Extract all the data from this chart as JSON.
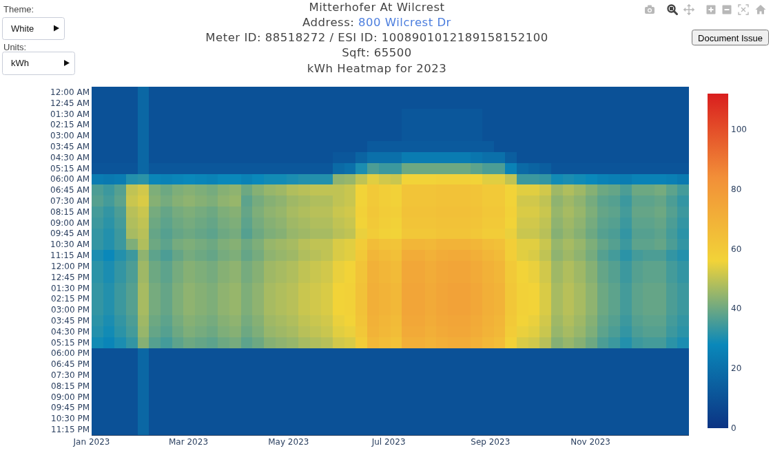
{
  "chart_data": {
    "type": "heatmap",
    "title": "Mitterhofer At Wilcrest",
    "subtitle": "Address: 800 Wilcrest Dr\nMeter ID: 88518272 / ESI ID: 1008901012189158152100\nSqft: 65500\nkWh Heatmap for 2023",
    "annotations": [
      "Theme:",
      "White",
      "Units:",
      "kWh",
      "Document Issue"
    ],
    "x": [
      "2023-01-04T12:00",
      "2023-01-11T12:00",
      "2023-01-18T12:00",
      "2023-01-25T12:00",
      "2023-02-01T12:00",
      "2023-02-08T12:00",
      "2023-02-15T12:00",
      "2023-02-22T12:00",
      "2023-03-01T12:00",
      "2023-03-08T12:00",
      "2023-03-15T12:00",
      "2023-03-22T12:00",
      "2023-03-29T12:00",
      "2023-04-05T12:00",
      "2023-04-12T12:00",
      "2023-04-19T12:00",
      "2023-04-26T12:00",
      "2023-05-03T12:00",
      "2023-05-10T12:00",
      "2023-05-17T12:00",
      "2023-05-24T12:00",
      "2023-05-31T12:00",
      "2023-06-07T12:00",
      "2023-06-14T12:00",
      "2023-06-21T12:00",
      "2023-06-28T12:00",
      "2023-07-05T12:00",
      "2023-07-12T12:00",
      "2023-07-19T12:00",
      "2023-07-26T12:00",
      "2023-08-02T12:00",
      "2023-08-09T12:00",
      "2023-08-16T12:00",
      "2023-08-23T12:00",
      "2023-08-30T12:00",
      "2023-09-06T12:00",
      "2023-09-13T12:00",
      "2023-09-20T12:00",
      "2023-09-27T12:00",
      "2023-10-04T12:00",
      "2023-10-11T12:00",
      "2023-10-18T12:00",
      "2023-10-25T12:00",
      "2023-11-01T12:00",
      "2023-11-08T12:00",
      "2023-11-15T12:00",
      "2023-11-22T12:00",
      "2023-11-29T12:00",
      "2023-12-06T12:00",
      "2023-12-13T12:00",
      "2023-12-20T12:00",
      "2023-12-27T12:00"
    ],
    "xlim": [
      "2023-01-01",
      "2023-12-31"
    ],
    "xticks": [
      {
        "value": "2023-01-01",
        "label": "Jan 2023"
      },
      {
        "value": "2023-03-01",
        "label": "Mar 2023"
      },
      {
        "value": "2023-05-01",
        "label": "May 2023"
      },
      {
        "value": "2023-07-01",
        "label": "Jul 2023"
      },
      {
        "value": "2023-09-01",
        "label": "Sep 2023"
      },
      {
        "value": "2023-11-01",
        "label": "Nov 2023"
      }
    ],
    "y_categories": [
      "12:00 AM",
      "12:45 AM",
      "01:30 AM",
      "02:15 AM",
      "03:00 AM",
      "03:45 AM",
      "04:30 AM",
      "05:15 AM",
      "06:00 AM",
      "06:45 AM",
      "07:30 AM",
      "08:15 AM",
      "09:00 AM",
      "09:45 AM",
      "10:30 AM",
      "11:15 AM",
      "12:00 PM",
      "12:45 PM",
      "01:30 PM",
      "02:15 PM",
      "03:00 PM",
      "03:45 PM",
      "04:30 PM",
      "05:15 PM",
      "06:00 PM",
      "06:45 PM",
      "07:30 PM",
      "08:15 PM",
      "09:00 PM",
      "09:45 PM",
      "10:30 PM",
      "11:15 PM"
    ],
    "clim": [
      0,
      112
    ],
    "cticks": [
      0,
      20,
      40,
      60,
      80,
      100
    ],
    "cells": [
      [
        10,
        10,
        10,
        10,
        17,
        10,
        10,
        10,
        10,
        10,
        10,
        10,
        10,
        10,
        10,
        10,
        10,
        10,
        10,
        10,
        10,
        10,
        10,
        10,
        10,
        10,
        10,
        10,
        10,
        10,
        10,
        10,
        10,
        10,
        10,
        10,
        10,
        10,
        10,
        10,
        10,
        10,
        10,
        10,
        10,
        10,
        10,
        10,
        10,
        10,
        10,
        10
      ],
      [
        10,
        10,
        10,
        10,
        17,
        10,
        10,
        10,
        10,
        10,
        10,
        10,
        10,
        10,
        10,
        10,
        10,
        10,
        10,
        10,
        10,
        10,
        10,
        10,
        10,
        10,
        10,
        10,
        10,
        10,
        10,
        10,
        10,
        10,
        10,
        10,
        10,
        10,
        10,
        10,
        10,
        10,
        10,
        10,
        10,
        10,
        10,
        10,
        10,
        10,
        10,
        10
      ],
      [
        10,
        10,
        10,
        10,
        17,
        10,
        10,
        10,
        10,
        10,
        10,
        10,
        10,
        10,
        10,
        10,
        10,
        10,
        10,
        10,
        10,
        10,
        10,
        10,
        10,
        10,
        10,
        12,
        12,
        12,
        12,
        12,
        12,
        12,
        10,
        10,
        10,
        10,
        10,
        10,
        10,
        10,
        10,
        10,
        10,
        10,
        10,
        10,
        10,
        10,
        10,
        10
      ],
      [
        10,
        10,
        10,
        10,
        17,
        10,
        10,
        10,
        10,
        10,
        10,
        10,
        10,
        10,
        10,
        10,
        10,
        10,
        10,
        10,
        10,
        10,
        10,
        10,
        10,
        10,
        10,
        12,
        12,
        12,
        12,
        12,
        12,
        12,
        10,
        10,
        10,
        10,
        10,
        10,
        10,
        10,
        10,
        10,
        10,
        10,
        10,
        10,
        10,
        10,
        10,
        10
      ],
      [
        10,
        10,
        10,
        10,
        17,
        10,
        10,
        10,
        10,
        10,
        10,
        10,
        10,
        10,
        10,
        10,
        10,
        10,
        10,
        10,
        10,
        10,
        10,
        10,
        10,
        10,
        10,
        12,
        12,
        12,
        12,
        12,
        12,
        12,
        10,
        10,
        10,
        10,
        10,
        10,
        10,
        10,
        10,
        10,
        10,
        10,
        10,
        10,
        10,
        10,
        10,
        10
      ],
      [
        10,
        10,
        10,
        10,
        17,
        10,
        10,
        10,
        10,
        10,
        10,
        10,
        10,
        10,
        10,
        10,
        10,
        10,
        10,
        10,
        10,
        10,
        10,
        10,
        13,
        13,
        13,
        13,
        13,
        13,
        13,
        13,
        13,
        13,
        13,
        10,
        10,
        10,
        10,
        10,
        10,
        10,
        10,
        10,
        10,
        10,
        10,
        10,
        10,
        10,
        10,
        10
      ],
      [
        10,
        10,
        10,
        10,
        17,
        10,
        10,
        10,
        10,
        10,
        10,
        10,
        10,
        10,
        10,
        10,
        10,
        10,
        10,
        10,
        10,
        12,
        12,
        16,
        20,
        20,
        20,
        24,
        24,
        24,
        24,
        24,
        24,
        22,
        20,
        20,
        14,
        10,
        10,
        10,
        10,
        10,
        10,
        10,
        10,
        10,
        10,
        10,
        10,
        10,
        10,
        10
      ],
      [
        11,
        11,
        11,
        11,
        17,
        12,
        12,
        12,
        12,
        12,
        12,
        12,
        12,
        12,
        12,
        12,
        12,
        12,
        12,
        12,
        12,
        18,
        20,
        30,
        36,
        34,
        34,
        40,
        40,
        40,
        40,
        40,
        40,
        38,
        36,
        36,
        26,
        18,
        16,
        14,
        11,
        11,
        11,
        11,
        11,
        11,
        11,
        11,
        11,
        11,
        11,
        11
      ],
      [
        24,
        23,
        24,
        31,
        32,
        27,
        26,
        27,
        28,
        27,
        26,
        28,
        28,
        26,
        28,
        29,
        29,
        30,
        31,
        31,
        31,
        44,
        45,
        50,
        54,
        52,
        51,
        56,
        56,
        56,
        57,
        57,
        57,
        56,
        54,
        54,
        50,
        34,
        34,
        33,
        29,
        30,
        29,
        28,
        26,
        25,
        24,
        26,
        26,
        26,
        25,
        23
      ],
      [
        36,
        34,
        37,
        50,
        52,
        42,
        40,
        42,
        43,
        42,
        41,
        43,
        44,
        40,
        43,
        45,
        46,
        48,
        49,
        50,
        50,
        50,
        51,
        56,
        60,
        58,
        57,
        62,
        62,
        62,
        63,
        63,
        63,
        62,
        60,
        60,
        56,
        54,
        54,
        52,
        46,
        48,
        46,
        43,
        40,
        39,
        36,
        40,
        40,
        41,
        38,
        35
      ],
      [
        37,
        35,
        38,
        51,
        53,
        43,
        41,
        43,
        44,
        43,
        42,
        44,
        45,
        38,
        41,
        43,
        44,
        46,
        47,
        48,
        48,
        50,
        51,
        56,
        60,
        58,
        57,
        62,
        62,
        62,
        63,
        63,
        63,
        62,
        60,
        60,
        56,
        52,
        52,
        50,
        44,
        46,
        44,
        41,
        38,
        37,
        34,
        38,
        38,
        39,
        36,
        33
      ],
      [
        35,
        33,
        36,
        49,
        51,
        41,
        39,
        41,
        42,
        41,
        40,
        42,
        43,
        39,
        42,
        44,
        45,
        47,
        48,
        49,
        49,
        51,
        52,
        57,
        61,
        59,
        58,
        63,
        63,
        63,
        64,
        64,
        64,
        63,
        61,
        61,
        57,
        53,
        53,
        51,
        45,
        47,
        45,
        42,
        39,
        38,
        35,
        39,
        39,
        40,
        37,
        34
      ],
      [
        34,
        32,
        35,
        48,
        50,
        40,
        38,
        40,
        41,
        40,
        39,
        41,
        42,
        38,
        41,
        43,
        44,
        46,
        47,
        48,
        48,
        50,
        51,
        56,
        60,
        58,
        57,
        62,
        62,
        62,
        63,
        63,
        63,
        62,
        60,
        60,
        56,
        52,
        52,
        50,
        44,
        46,
        44,
        41,
        38,
        37,
        34,
        38,
        38,
        39,
        36,
        33
      ],
      [
        33,
        31,
        34,
        47,
        49,
        39,
        37,
        39,
        40,
        39,
        38,
        40,
        41,
        37,
        40,
        42,
        43,
        45,
        46,
        47,
        47,
        49,
        50,
        55,
        59,
        57,
        56,
        61,
        61,
        61,
        62,
        62,
        62,
        61,
        59,
        59,
        55,
        51,
        51,
        49,
        43,
        45,
        43,
        40,
        37,
        36,
        33,
        37,
        37,
        38,
        35,
        32
      ],
      [
        33,
        31,
        34,
        42,
        48,
        40,
        38,
        41,
        42,
        41,
        40,
        42,
        43,
        40,
        42,
        45,
        46,
        47,
        49,
        50,
        50,
        53,
        54,
        59,
        65,
        63,
        62,
        68,
        68,
        67,
        69,
        69,
        69,
        68,
        65,
        64,
        58,
        54,
        54,
        51,
        45,
        47,
        45,
        42,
        39,
        37,
        34,
        38,
        38,
        39,
        36,
        33
      ],
      [
        30,
        28,
        31,
        34,
        44,
        38,
        36,
        39,
        41,
        40,
        39,
        41,
        42,
        39,
        41,
        44,
        45,
        46,
        48,
        49,
        50,
        53,
        54,
        60,
        68,
        66,
        64,
        72,
        72,
        70,
        72,
        73,
        73,
        71,
        68,
        66,
        58,
        54,
        53,
        50,
        44,
        46,
        44,
        41,
        37,
        35,
        32,
        35,
        36,
        36,
        33,
        31
      ],
      [
        32,
        30,
        33,
        36,
        46,
        40,
        38,
        41,
        43,
        42,
        41,
        43,
        44,
        41,
        43,
        46,
        47,
        48,
        50,
        51,
        52,
        55,
        56,
        62,
        70,
        68,
        66,
        74,
        74,
        72,
        74,
        75,
        75,
        73,
        70,
        68,
        60,
        56,
        55,
        52,
        46,
        48,
        46,
        43,
        39,
        37,
        34,
        37,
        38,
        38,
        35,
        33
      ],
      [
        32,
        30,
        33,
        36,
        46,
        40,
        38,
        41,
        43,
        42,
        41,
        43,
        44,
        41,
        43,
        46,
        47,
        48,
        50,
        51,
        52,
        55,
        56,
        62,
        70,
        68,
        66,
        74,
        74,
        72,
        74,
        75,
        75,
        73,
        70,
        68,
        60,
        56,
        55,
        52,
        46,
        48,
        46,
        43,
        39,
        37,
        34,
        37,
        38,
        38,
        35,
        33
      ],
      [
        33,
        31,
        34,
        37,
        47,
        41,
        39,
        42,
        44,
        43,
        42,
        44,
        45,
        42,
        44,
        47,
        48,
        49,
        51,
        52,
        53,
        56,
        57,
        63,
        71,
        69,
        67,
        75,
        75,
        73,
        75,
        76,
        76,
        74,
        71,
        69,
        61,
        57,
        56,
        53,
        47,
        49,
        47,
        44,
        40,
        38,
        35,
        38,
        39,
        39,
        36,
        34
      ],
      [
        33,
        31,
        34,
        37,
        47,
        41,
        39,
        42,
        44,
        43,
        42,
        44,
        45,
        42,
        44,
        47,
        48,
        49,
        51,
        52,
        53,
        56,
        57,
        63,
        71,
        69,
        67,
        75,
        75,
        73,
        75,
        76,
        76,
        74,
        71,
        69,
        61,
        57,
        56,
        53,
        47,
        49,
        47,
        44,
        40,
        38,
        35,
        38,
        39,
        39,
        36,
        34
      ],
      [
        33,
        31,
        34,
        37,
        47,
        41,
        39,
        42,
        44,
        43,
        42,
        44,
        45,
        42,
        44,
        47,
        48,
        49,
        51,
        52,
        53,
        56,
        57,
        63,
        71,
        69,
        67,
        75,
        75,
        73,
        75,
        76,
        76,
        74,
        71,
        69,
        61,
        57,
        56,
        53,
        47,
        49,
        47,
        44,
        40,
        38,
        35,
        38,
        39,
        39,
        36,
        34
      ],
      [
        32,
        30,
        33,
        36,
        46,
        40,
        38,
        41,
        43,
        42,
        41,
        43,
        44,
        41,
        43,
        46,
        47,
        48,
        50,
        51,
        52,
        55,
        56,
        62,
        70,
        68,
        66,
        74,
        74,
        72,
        74,
        75,
        75,
        73,
        70,
        68,
        60,
        56,
        55,
        52,
        46,
        48,
        46,
        43,
        39,
        37,
        34,
        37,
        38,
        38,
        35,
        33
      ],
      [
        31,
        29,
        32,
        35,
        45,
        39,
        37,
        40,
        42,
        41,
        40,
        42,
        43,
        40,
        42,
        45,
        46,
        47,
        49,
        50,
        51,
        54,
        55,
        61,
        69,
        67,
        65,
        73,
        73,
        71,
        73,
        74,
        74,
        72,
        69,
        67,
        59,
        55,
        54,
        51,
        45,
        47,
        45,
        42,
        38,
        36,
        33,
        36,
        37,
        37,
        34,
        32
      ],
      [
        29,
        27,
        30,
        33,
        43,
        37,
        35,
        38,
        40,
        39,
        38,
        40,
        41,
        38,
        40,
        43,
        44,
        45,
        47,
        48,
        49,
        52,
        53,
        59,
        67,
        65,
        63,
        71,
        71,
        69,
        71,
        72,
        72,
        70,
        67,
        65,
        57,
        53,
        52,
        49,
        43,
        45,
        43,
        40,
        36,
        34,
        31,
        34,
        35,
        35,
        32,
        30
      ],
      [
        10,
        10,
        10,
        10,
        17,
        10,
        10,
        10,
        10,
        10,
        10,
        10,
        10,
        10,
        10,
        10,
        10,
        10,
        10,
        10,
        10,
        10,
        10,
        10,
        10,
        10,
        10,
        10,
        10,
        10,
        10,
        10,
        10,
        10,
        10,
        10,
        10,
        10,
        10,
        10,
        10,
        10,
        10,
        10,
        10,
        10,
        10,
        10,
        10,
        10,
        10,
        10
      ],
      [
        10,
        10,
        10,
        10,
        17,
        10,
        10,
        10,
        10,
        10,
        10,
        10,
        10,
        10,
        10,
        10,
        10,
        10,
        10,
        10,
        10,
        10,
        10,
        10,
        10,
        10,
        10,
        10,
        10,
        10,
        10,
        10,
        10,
        10,
        10,
        10,
        10,
        10,
        10,
        10,
        10,
        10,
        10,
        10,
        10,
        10,
        10,
        10,
        10,
        10,
        10,
        10
      ],
      [
        10,
        10,
        10,
        10,
        17,
        10,
        10,
        10,
        10,
        10,
        10,
        10,
        10,
        10,
        10,
        10,
        10,
        10,
        10,
        10,
        10,
        10,
        10,
        10,
        10,
        10,
        10,
        10,
        10,
        10,
        10,
        10,
        10,
        10,
        10,
        10,
        10,
        10,
        10,
        10,
        10,
        10,
        10,
        10,
        10,
        10,
        10,
        10,
        10,
        10,
        10,
        10
      ],
      [
        10,
        10,
        10,
        10,
        17,
        10,
        10,
        10,
        10,
        10,
        10,
        10,
        10,
        10,
        10,
        10,
        10,
        10,
        10,
        10,
        10,
        10,
        10,
        10,
        10,
        10,
        10,
        10,
        10,
        10,
        10,
        10,
        10,
        10,
        10,
        10,
        10,
        10,
        10,
        10,
        10,
        10,
        10,
        10,
        10,
        10,
        10,
        10,
        10,
        10,
        10,
        10
      ],
      [
        10,
        10,
        10,
        10,
        17,
        10,
        10,
        10,
        10,
        10,
        10,
        10,
        10,
        10,
        10,
        10,
        10,
        10,
        10,
        10,
        10,
        10,
        10,
        10,
        10,
        10,
        10,
        10,
        10,
        10,
        10,
        10,
        10,
        10,
        10,
        10,
        10,
        10,
        10,
        10,
        10,
        10,
        10,
        10,
        10,
        10,
        10,
        10,
        10,
        10,
        10,
        10
      ],
      [
        10,
        10,
        10,
        10,
        17,
        10,
        10,
        10,
        10,
        10,
        10,
        10,
        10,
        10,
        10,
        10,
        10,
        10,
        10,
        10,
        10,
        10,
        10,
        10,
        10,
        10,
        10,
        10,
        10,
        10,
        10,
        10,
        10,
        10,
        10,
        10,
        10,
        10,
        10,
        10,
        10,
        10,
        10,
        10,
        10,
        10,
        10,
        10,
        10,
        10,
        10,
        10
      ],
      [
        10,
        10,
        10,
        10,
        17,
        10,
        10,
        10,
        10,
        10,
        10,
        10,
        10,
        10,
        10,
        10,
        10,
        10,
        10,
        10,
        10,
        10,
        10,
        10,
        10,
        10,
        10,
        10,
        10,
        10,
        10,
        10,
        10,
        10,
        10,
        10,
        10,
        10,
        10,
        10,
        10,
        10,
        10,
        10,
        10,
        10,
        10,
        10,
        10,
        10,
        10,
        10
      ],
      [
        10,
        10,
        10,
        10,
        17,
        10,
        10,
        10,
        10,
        10,
        10,
        10,
        10,
        10,
        10,
        10,
        10,
        10,
        10,
        10,
        10,
        10,
        10,
        10,
        10,
        10,
        10,
        10,
        10,
        10,
        10,
        10,
        10,
        10,
        10,
        10,
        10,
        10,
        10,
        10,
        10,
        10,
        10,
        10,
        10,
        10,
        10,
        10,
        10,
        10,
        10,
        10
      ]
    ]
  }
}
